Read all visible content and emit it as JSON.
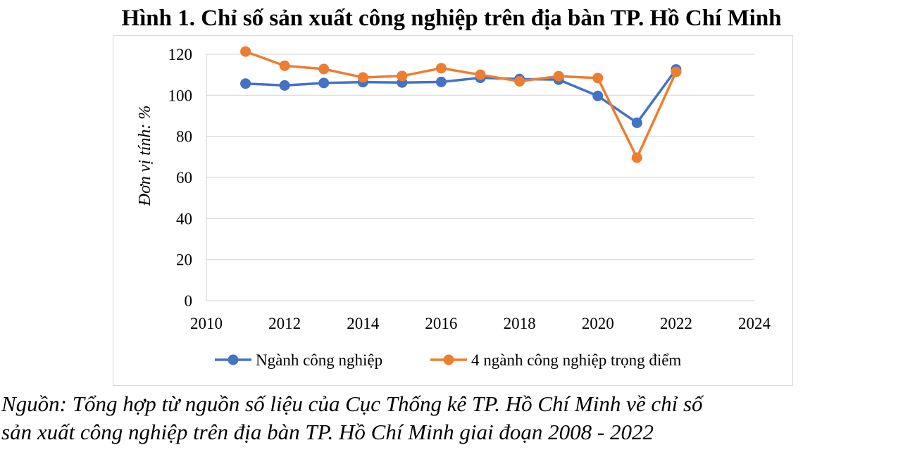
{
  "figure": {
    "title": "Hình 1. Chỉ số sản xuất công nghiệp trên địa bàn TP. Hồ Chí Minh",
    "source_line1": "Nguồn: Tổng hợp từ nguồn số liệu của Cục Thống kê TP. Hồ Chí Minh về chỉ số",
    "source_line2": "sản xuất công nghiệp trên địa bàn TP. Hồ Chí Minh giai đoạn 2008 - 2022"
  },
  "chart_data": {
    "type": "scatter",
    "title": "",
    "xlabel": "",
    "ylabel": "Đơn vị tính: %",
    "xlim": [
      2010,
      2024
    ],
    "ylim": [
      0,
      120
    ],
    "xticks": [
      2010,
      2012,
      2014,
      2016,
      2018,
      2020,
      2022,
      2024
    ],
    "yticks": [
      0,
      20,
      40,
      60,
      80,
      100,
      120
    ],
    "grid": "horizontal",
    "legend": "bottom",
    "x": [
      2011,
      2012,
      2013,
      2014,
      2015,
      2016,
      2017,
      2018,
      2019,
      2020,
      2021,
      2022
    ],
    "series": [
      {
        "name": "Ngành công nghiệp",
        "color": "#4472C4",
        "values": [
          105.7,
          104.8,
          106.0,
          106.4,
          106.2,
          106.5,
          108.5,
          107.9,
          107.6,
          99.7,
          86.6,
          112.6
        ]
      },
      {
        "name": "4 ngành công nghiệp trọng điểm",
        "color": "#ED7D31",
        "values": [
          121.3,
          114.4,
          112.8,
          108.7,
          109.4,
          113.2,
          110.0,
          106.8,
          109.3,
          108.4,
          69.6,
          111.4
        ]
      }
    ]
  }
}
